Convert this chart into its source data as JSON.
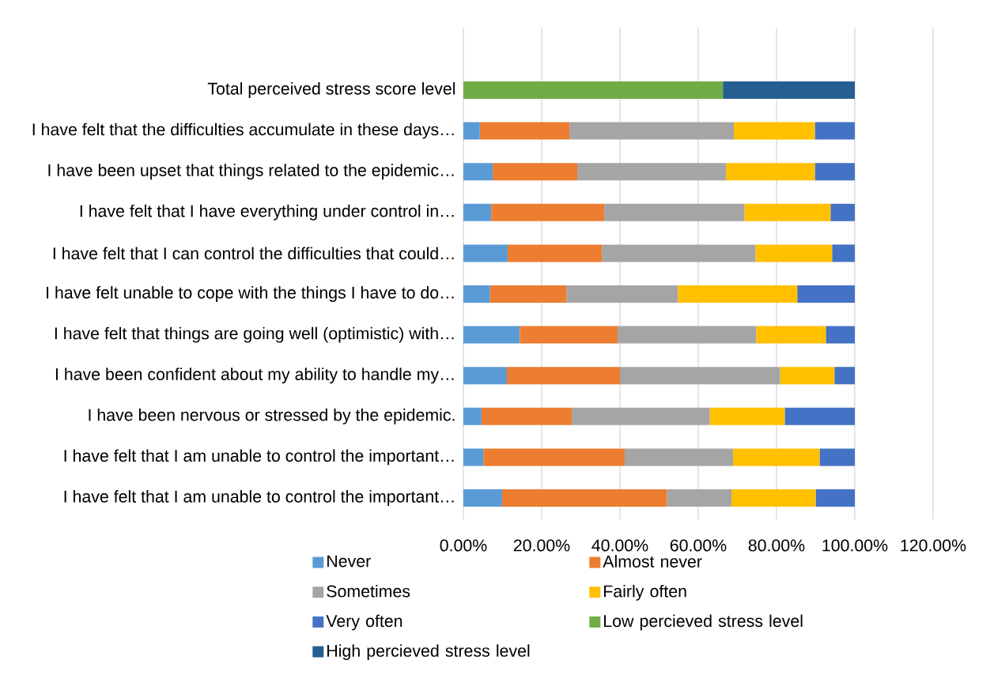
{
  "chart_data": {
    "type": "bar",
    "orientation": "horizontal",
    "stacked": true,
    "grid": "x",
    "legend": "bottom",
    "categories": [
      "Total perceived stress score level",
      "I have felt that the difficulties accumulate in these days…",
      "I have been upset that things related to the epidemic…",
      "I have felt that I have everything under control in…",
      "I have felt that I can control the difficulties that could…",
      "I have felt unable to cope with the things I have to do…",
      "I have felt that things are going well (optimistic) with…",
      "I have been confident about my ability to handle my…",
      "I have been nervous or stressed by the epidemic.",
      "I have felt that I am unable to control the important…",
      "I have felt that I am unable to control the important…"
    ],
    "xlim": [
      0,
      120
    ],
    "xticks": [
      {
        "value": 0,
        "label": "0.00%"
      },
      {
        "value": 20,
        "label": "20.00%"
      },
      {
        "value": 40,
        "label": "40.00%"
      },
      {
        "value": 60,
        "label": "60.00%"
      },
      {
        "value": 80,
        "label": "80.00%"
      },
      {
        "value": 100,
        "label": "100.00%"
      },
      {
        "value": 120,
        "label": "120.00%"
      }
    ],
    "series": [
      {
        "name": "Never",
        "color": "#5b9bd5",
        "values": [
          null,
          4.2,
          7.5,
          7.1,
          11.3,
          6.8,
          14.4,
          11.1,
          4.6,
          5.1,
          9.9
        ]
      },
      {
        "name": "Almost never",
        "color": "#ed7d31",
        "values": [
          null,
          22.9,
          21.6,
          28.9,
          24.1,
          19.5,
          25.0,
          28.9,
          23.1,
          36.1,
          42.1
        ]
      },
      {
        "name": "Sometimes",
        "color": "#a5a5a5",
        "values": [
          null,
          42.0,
          38.0,
          35.8,
          39.2,
          28.5,
          35.4,
          40.9,
          35.2,
          27.7,
          16.5
        ]
      },
      {
        "name": "Fairly often",
        "color": "#ffc000",
        "values": [
          null,
          20.7,
          22.7,
          22.0,
          19.6,
          30.5,
          17.8,
          13.9,
          19.2,
          22.1,
          21.5
        ]
      },
      {
        "name": "Very often",
        "color": "#4472c4",
        "values": [
          null,
          10.2,
          10.2,
          6.2,
          5.8,
          14.7,
          7.4,
          5.2,
          17.9,
          9.0,
          10.0
        ]
      },
      {
        "name": "Low percieved stress level",
        "color": "#70ad47",
        "values": [
          66.3,
          null,
          null,
          null,
          null,
          null,
          null,
          null,
          null,
          null,
          null
        ]
      },
      {
        "name": "High percieved stress level",
        "color": "#255e91",
        "values": [
          33.7,
          null,
          null,
          null,
          null,
          null,
          null,
          null,
          null,
          null,
          null
        ]
      }
    ]
  }
}
